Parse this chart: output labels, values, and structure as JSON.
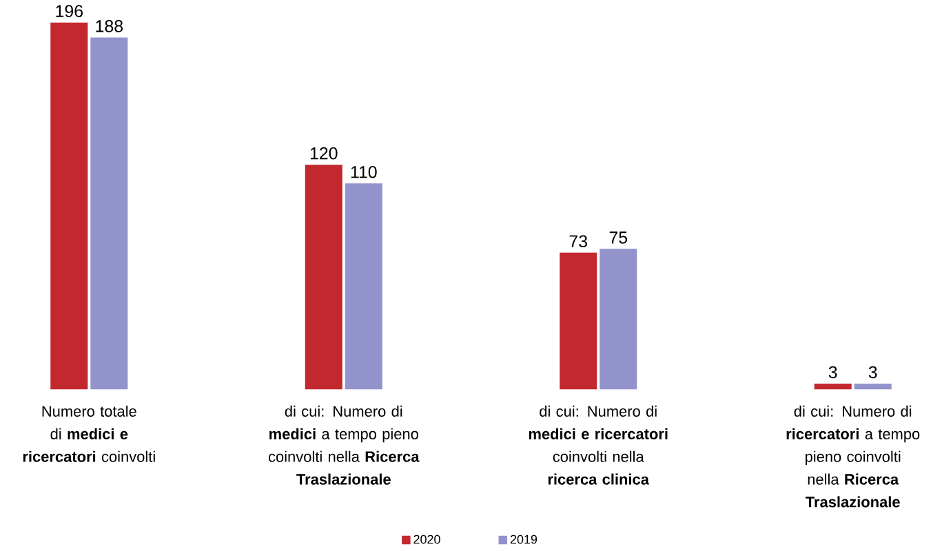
{
  "chart_data": {
    "type": "bar",
    "categories": [
      "Numero totale di **medici e ricercatori** coinvolti",
      "di cui:  Numero di **medici** a tempo pieno coinvolti nella **Ricerca Traslazionale**",
      "di cui:  Numero di **medici e ricercatori** coinvolti nella **ricerca clinica**",
      "di cui:  Numero di **ricercatori** a tempo pieno coinvolti nella **Ricerca Traslazionale**"
    ],
    "series": [
      {
        "name": "2020",
        "color": "#c4282f",
        "values": [
          196,
          120,
          73,
          3
        ]
      },
      {
        "name": "2019",
        "color": "#9393cc",
        "values": [
          188,
          110,
          75,
          3
        ]
      }
    ],
    "data_labels": true,
    "legend": "bottom"
  }
}
